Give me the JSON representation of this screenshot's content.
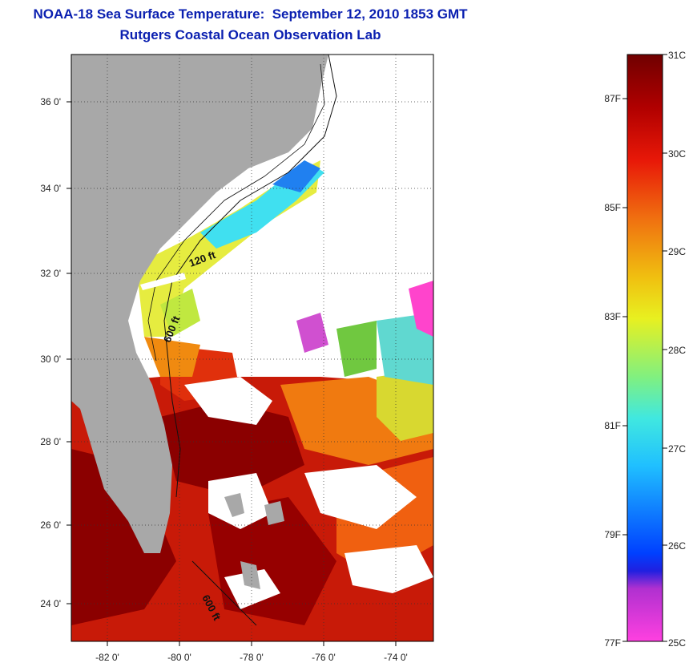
{
  "title": {
    "line1": "NOAA-18 Sea Surface Temperature:  September 12, 2010 1853 GMT",
    "line2": "Rutgers Coastal Ocean Observation Lab"
  },
  "map": {
    "lon_ticks": [
      "-82 0'",
      "-80 0'",
      "-78 0'",
      "-76 0'",
      "-74 0'"
    ],
    "lat_ticks": [
      "36 0'",
      "34 0'",
      "32 0'",
      "30 0'",
      "28 0'",
      "26 0'",
      "24 0'"
    ],
    "contour_labels": [
      "120 ft",
      "600 ft",
      "600 ft"
    ],
    "colors": {
      "land": "#a8a8a8",
      "cloud": "#ffffff",
      "warm": "#8b0000",
      "hot": "#d42010",
      "orange": "#f07a10",
      "yellow": "#f5e020",
      "cyan": "#30d8ff",
      "magenta": "#ff44cc"
    }
  },
  "colorbar": {
    "f_ticks": [
      "87F",
      "85F",
      "83F",
      "81F",
      "79F",
      "77F"
    ],
    "c_ticks": [
      "31C",
      "30C",
      "29C",
      "28C",
      "27C",
      "26C",
      "25C"
    ]
  }
}
